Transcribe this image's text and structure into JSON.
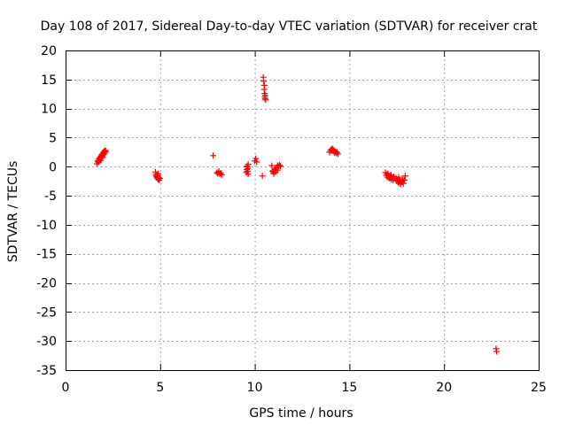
{
  "chart_data": {
    "type": "scatter",
    "title": "Day 108 of 2017, Sidereal Day-to-day VTEC variation (SDTVAR) for receiver crat",
    "xlabel": "GPS time / hours",
    "ylabel": "SDTVAR / TECUs",
    "xlim": [
      0,
      25
    ],
    "ylim": [
      -35,
      20
    ],
    "xticks": [
      0,
      5,
      10,
      15,
      20,
      25
    ],
    "yticks": [
      -35,
      -30,
      -25,
      -20,
      -15,
      -10,
      -5,
      0,
      5,
      10,
      15,
      20
    ],
    "grid": true,
    "marker": "+",
    "marker_color": "#ff0000",
    "series": [
      {
        "name": "SDTVAR",
        "x": [
          1.65,
          1.7,
          1.72,
          1.75,
          1.78,
          1.8,
          1.82,
          1.85,
          1.88,
          1.9,
          1.92,
          1.95,
          1.98,
          2.0,
          2.02,
          2.05,
          2.08,
          2.1,
          2.12,
          1.75,
          1.85,
          1.95,
          2.05,
          4.75,
          4.78,
          4.8,
          4.82,
          4.85,
          4.88,
          4.9,
          4.92,
          4.95,
          4.98,
          4.85,
          4.9,
          7.8,
          8.0,
          8.05,
          8.1,
          8.15,
          8.2,
          8.25,
          8.1,
          9.55,
          9.6,
          9.62,
          9.65,
          9.6,
          9.58,
          9.65,
          9.6,
          10.0,
          10.05,
          10.1,
          10.4,
          10.45,
          10.47,
          10.5,
          10.5,
          10.52,
          10.53,
          10.55,
          10.55,
          10.57,
          10.9,
          10.95,
          11.0,
          11.05,
          11.1,
          11.15,
          11.2,
          11.25,
          11.3,
          11.35,
          11.0,
          11.1,
          11.2,
          10.95,
          13.95,
          14.0,
          14.05,
          14.1,
          14.15,
          14.2,
          14.25,
          14.3,
          14.35,
          14.4,
          14.1,
          14.2,
          14.3,
          16.9,
          16.95,
          17.0,
          17.05,
          17.1,
          17.15,
          17.2,
          17.25,
          17.3,
          17.35,
          17.45,
          17.5,
          17.55,
          17.6,
          17.65,
          17.7,
          17.75,
          17.8,
          17.85,
          17.9,
          17.95,
          17.0,
          17.2,
          17.6,
          17.8,
          22.75,
          22.78
        ],
        "y": [
          0.5,
          1.0,
          0.8,
          1.3,
          1.0,
          1.5,
          1.2,
          1.7,
          1.5,
          2.0,
          1.8,
          2.2,
          2.0,
          2.5,
          2.3,
          2.6,
          2.8,
          2.5,
          2.7,
          0.8,
          1.1,
          1.6,
          2.2,
          -0.9,
          -1.3,
          -1.6,
          -1.8,
          -2.0,
          -1.7,
          -2.2,
          -1.9,
          -2.3,
          -2.0,
          -1.5,
          -1.2,
          1.9,
          -1.0,
          -1.2,
          -0.8,
          -1.3,
          -1.1,
          -1.4,
          -0.9,
          -1.0,
          0.1,
          -0.3,
          0.4,
          -0.8,
          -0.5,
          -1.3,
          0.0,
          1.0,
          1.4,
          0.8,
          -1.6,
          15.4,
          14.7,
          14.0,
          13.3,
          12.6,
          12.0,
          11.7,
          12.3,
          11.5,
          0.2,
          -0.8,
          -1.2,
          -0.5,
          -0.9,
          -0.2,
          -0.6,
          0.0,
          0.3,
          0.1,
          -1.0,
          -0.4,
          0.2,
          -0.7,
          2.5,
          2.8,
          3.0,
          2.7,
          2.9,
          2.4,
          2.6,
          2.3,
          2.5,
          2.2,
          3.1,
          2.6,
          2.4,
          -1.0,
          -1.5,
          -1.8,
          -1.3,
          -2.0,
          -1.6,
          -2.2,
          -1.9,
          -2.3,
          -1.7,
          -2.0,
          -2.5,
          -2.2,
          -2.8,
          -2.4,
          -3.0,
          -2.6,
          -2.1,
          -2.9,
          -2.3,
          -1.6,
          -1.2,
          -1.4,
          -1.8,
          -2.6,
          -31.3,
          -31.8
        ]
      }
    ]
  }
}
